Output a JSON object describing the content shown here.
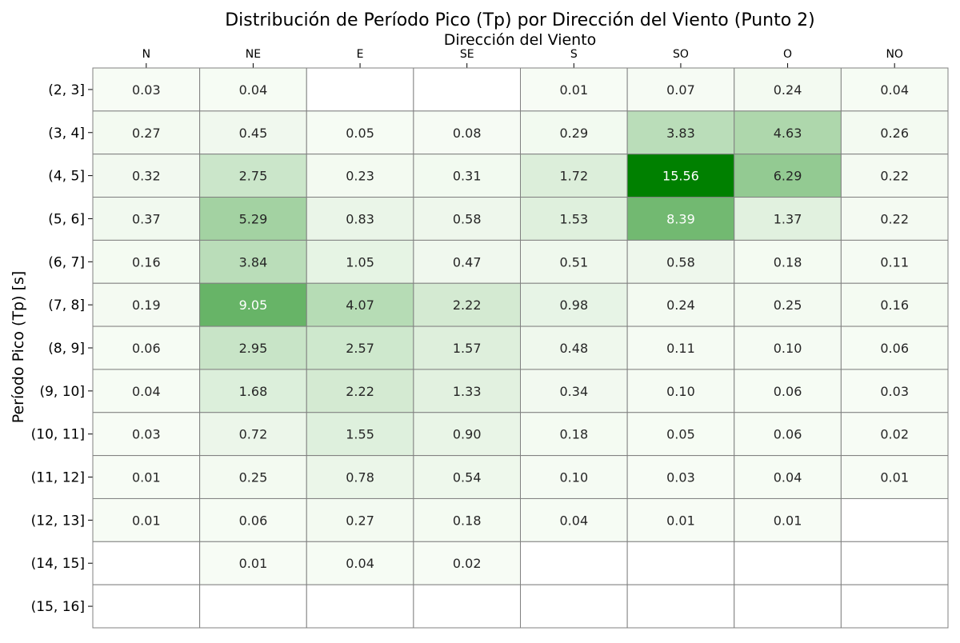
{
  "chart_data": {
    "type": "heatmap",
    "title": "Distribución de Período Pico (Tp) por Dirección del Viento (Punto 2)",
    "xlabel": "Dirección del Viento",
    "ylabel": "Período Pico (Tp) [s]",
    "x_axis_position": "top",
    "colormap": "Greens",
    "color_min": "#f7fcf5",
    "color_max": "#008000",
    "vmin": 0.0,
    "vmax": 15.56,
    "grid_color": "#808080",
    "columns": [
      "N",
      "NE",
      "E",
      "SE",
      "S",
      "SO",
      "O",
      "NO"
    ],
    "rows": [
      "(2, 3]",
      "(3, 4]",
      "(4, 5]",
      "(5, 6]",
      "(6, 7]",
      "(7, 8]",
      "(8, 9]",
      "(9, 10]",
      "(10, 11]",
      "(11, 12]",
      "(12, 13]",
      "(14, 15]",
      "(15, 16]"
    ],
    "values": [
      [
        0.03,
        0.04,
        null,
        null,
        0.01,
        0.07,
        0.24,
        0.04
      ],
      [
        0.27,
        0.45,
        0.05,
        0.08,
        0.29,
        3.83,
        4.63,
        0.26
      ],
      [
        0.32,
        2.75,
        0.23,
        0.31,
        1.72,
        15.56,
        6.29,
        0.22
      ],
      [
        0.37,
        5.29,
        0.83,
        0.58,
        1.53,
        8.39,
        1.37,
        0.22
      ],
      [
        0.16,
        3.84,
        1.05,
        0.47,
        0.51,
        0.58,
        0.18,
        0.11
      ],
      [
        0.19,
        9.05,
        4.07,
        2.22,
        0.98,
        0.24,
        0.25,
        0.16
      ],
      [
        0.06,
        2.95,
        2.57,
        1.57,
        0.48,
        0.11,
        0.1,
        0.06
      ],
      [
        0.04,
        1.68,
        2.22,
        1.33,
        0.34,
        0.1,
        0.06,
        0.03
      ],
      [
        0.03,
        0.72,
        1.55,
        0.9,
        0.18,
        0.05,
        0.06,
        0.02
      ],
      [
        0.01,
        0.25,
        0.78,
        0.54,
        0.1,
        0.03,
        0.04,
        0.01
      ],
      [
        0.01,
        0.06,
        0.27,
        0.18,
        0.04,
        0.01,
        0.01,
        null
      ],
      [
        null,
        0.01,
        0.04,
        0.02,
        null,
        null,
        null,
        null
      ],
      [
        null,
        null,
        null,
        null,
        null,
        null,
        null,
        null
      ]
    ],
    "value_format": "0.00"
  }
}
